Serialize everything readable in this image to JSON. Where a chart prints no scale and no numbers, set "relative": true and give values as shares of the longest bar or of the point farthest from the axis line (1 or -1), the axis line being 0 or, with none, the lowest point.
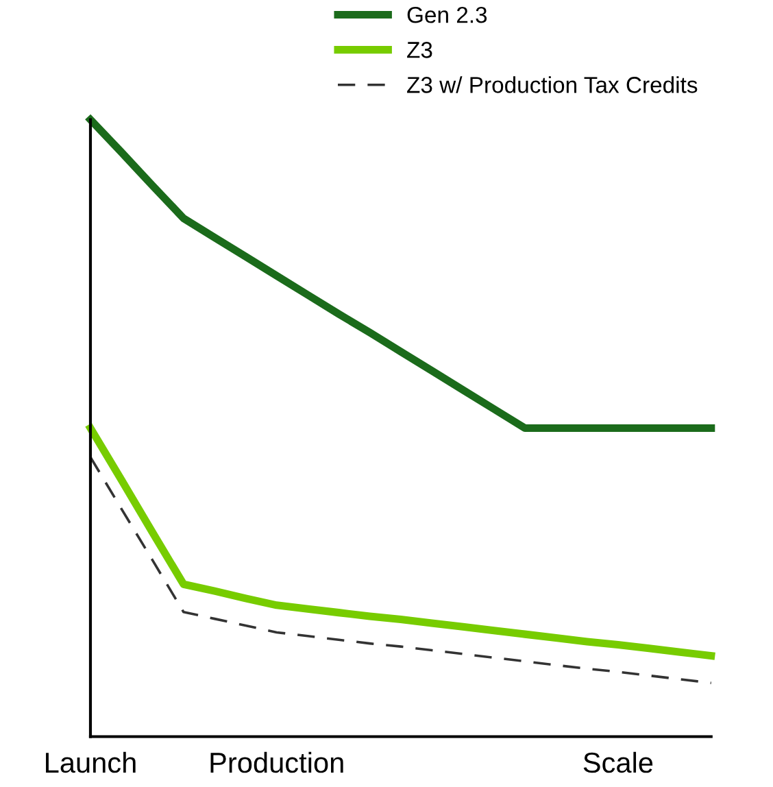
{
  "chart_data": {
    "type": "line",
    "relative": true,
    "categories": [
      "Launch",
      null,
      null,
      null,
      null,
      null,
      "Production",
      null,
      null,
      null,
      null,
      null,
      null,
      null,
      null,
      null,
      null,
      "Scale",
      null,
      null,
      null
    ],
    "series": [
      {
        "name": "Gen 2.3",
        "color": "#1b6b1b",
        "values": [
          1,
          0.947,
          0.893,
          0.84,
          0.809,
          0.778,
          0.747,
          0.716,
          0.685,
          0.655,
          0.624,
          0.593,
          0.562,
          0.531,
          0.5,
          0.5,
          0.5,
          0.5,
          0.5,
          0.5,
          0.5
        ],
        "line_style": "solid"
      },
      {
        "name": "Z3",
        "color": "#77cc00",
        "values": [
          0.5,
          0.416,
          0.331,
          0.247,
          0.236,
          0.224,
          0.213,
          0.207,
          0.201,
          0.195,
          0.19,
          0.184,
          0.178,
          0.172,
          0.166,
          0.16,
          0.154,
          0.149,
          0.143,
          0.137,
          0.131
        ],
        "line_style": "solid"
      },
      {
        "name": "Z3 w/ Production Tax Credits",
        "color": "#333333",
        "values": [
          0.453,
          0.369,
          0.286,
          0.202,
          0.191,
          0.18,
          0.169,
          0.163,
          0.157,
          0.151,
          0.146,
          0.14,
          0.134,
          0.128,
          0.122,
          0.116,
          0.11,
          0.105,
          0.099,
          0.093,
          0.087
        ],
        "line_style": "dashed"
      }
    ],
    "legend": "top",
    "grid": false
  }
}
